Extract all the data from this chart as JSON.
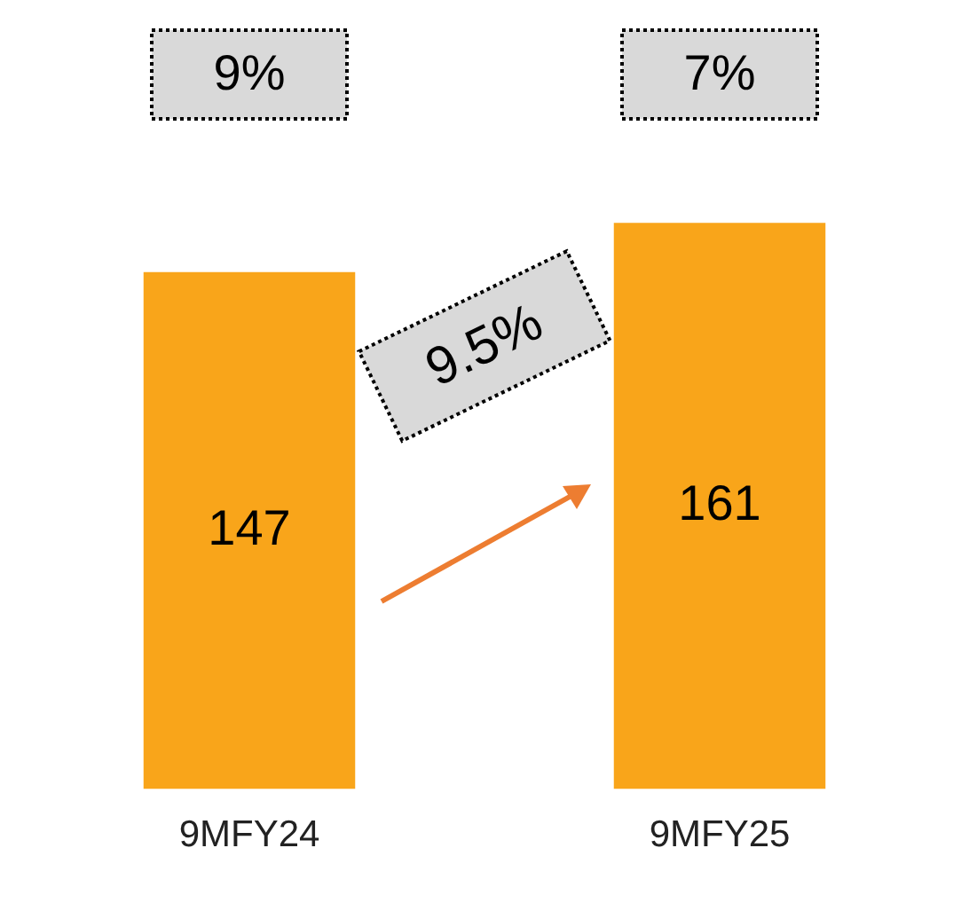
{
  "chart_data": {
    "type": "bar",
    "categories": [
      "9MFY24",
      "9MFY25"
    ],
    "values": [
      147,
      161
    ],
    "color": "#f9a51a",
    "data_labels": true,
    "grid": false,
    "legend": false,
    "annotations": [
      "9%",
      "7%",
      "9.5%"
    ]
  }
}
